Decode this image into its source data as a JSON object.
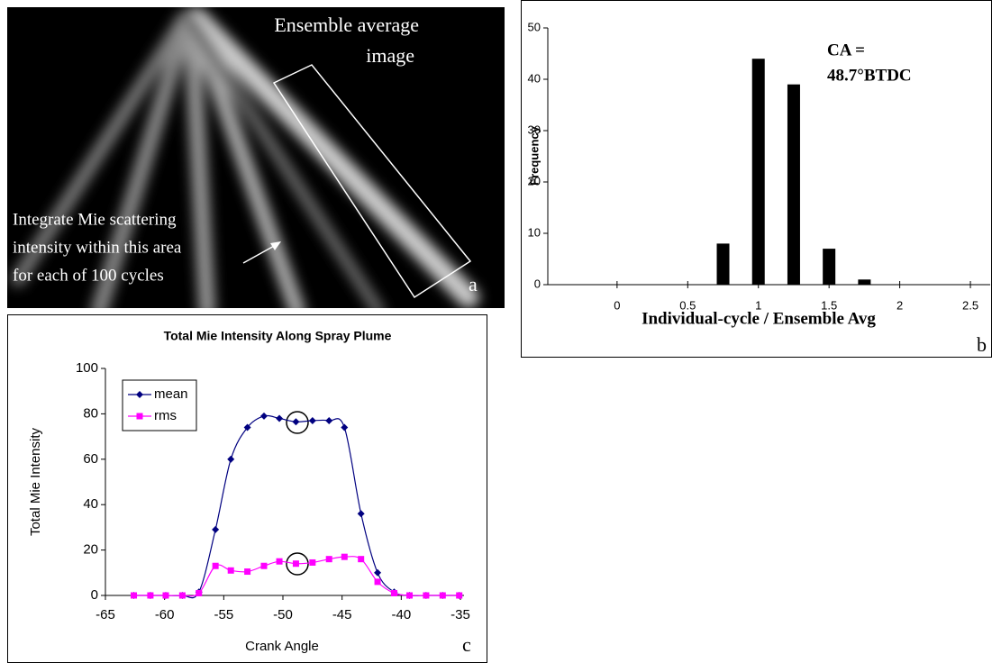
{
  "image_panel": {
    "title_lines": [
      "Ensemble average",
      "image"
    ],
    "note_lines": [
      "Integrate Mie scattering",
      "intensity within this area",
      "for each of 100 cycles"
    ],
    "panel_label": "a"
  },
  "chart_data": [
    {
      "type": "bar",
      "x": [
        0.75,
        1,
        1.25,
        1.5,
        1.75
      ],
      "values": [
        8,
        44,
        39,
        7,
        1
      ],
      "color": "#000000",
      "xlim": [
        -0.49,
        2.64
      ],
      "xticks": [
        0,
        0.5,
        1,
        1.5,
        2,
        2.5
      ],
      "ylim": [
        0,
        50
      ],
      "yticks": [
        0,
        10,
        20,
        30,
        40,
        50
      ],
      "xlabel": "Individual-cycle / Ensemble Avg",
      "ylabel": "Frequency",
      "annotation_lines": [
        "CA =",
        "48.7°BTDC"
      ],
      "panel_label": "b"
    },
    {
      "type": "line",
      "title": "Total Mie Intensity Along Spray Plume",
      "x": [
        -62.6,
        -61.2,
        -59.9,
        -58.5,
        -57.1,
        -55.7,
        -54.4,
        -53.0,
        -51.6,
        -50.3,
        -48.9,
        -47.5,
        -46.1,
        -44.8,
        -43.4,
        -42.0,
        -40.6,
        -39.3,
        -37.9,
        -36.5,
        -35.1
      ],
      "series": [
        {
          "name": "mean",
          "color": "#000080",
          "marker": "diamond",
          "values": [
            0,
            0,
            0,
            0,
            1.5,
            29,
            60,
            74,
            79,
            78,
            76.5,
            77,
            77,
            74,
            36,
            10,
            1.5,
            0,
            0,
            0,
            0
          ]
        },
        {
          "name": "rms",
          "color": "#ff00ff",
          "marker": "square",
          "values": [
            0,
            0,
            0,
            0,
            1,
            13,
            11,
            10.5,
            13,
            15,
            14,
            14.5,
            16,
            17,
            16,
            6,
            1,
            0,
            0,
            0,
            0
          ]
        }
      ],
      "xlim": [
        -65,
        -35
      ],
      "xticks": [
        -65,
        -60,
        -55,
        -50,
        -45,
        -40,
        -35
      ],
      "ylim": [
        0,
        100
      ],
      "yticks": [
        0,
        20,
        40,
        60,
        80,
        100
      ],
      "xlabel": "Crank Angle",
      "ylabel": "Total Mie Intensity",
      "legend": "upper left",
      "panel_label": "c"
    }
  ]
}
